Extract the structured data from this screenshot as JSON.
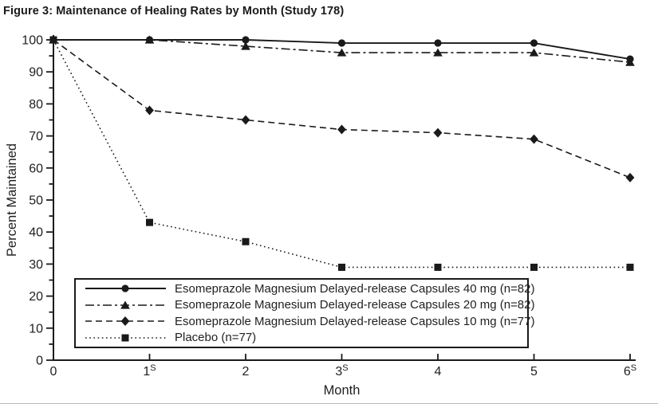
{
  "figure": {
    "title": "Figure 3: Maintenance of Healing Rates by Month (Study 178)"
  },
  "chart_data": {
    "type": "line",
    "title": "Figure 3: Maintenance of Healing Rates by Month (Study 178)",
    "xlabel": "Month",
    "ylabel": "Percent Maintained",
    "x": [
      0,
      1,
      2,
      3,
      4,
      5,
      6
    ],
    "x_tick_labels": [
      "0",
      "1",
      "2",
      "3",
      "4",
      "5",
      "6"
    ],
    "x_tick_superscript": "S",
    "x_tick_superscript_on": [
      1,
      3,
      6
    ],
    "ylim": [
      0,
      100
    ],
    "y_tick_step": 10,
    "y_minor_tick_step": 5,
    "grid": false,
    "legend_position": "inside-lower-left",
    "line_color": "#1a1a1a",
    "background_color": "#ffffff",
    "series": [
      {
        "id": "esomeprazole-40mg",
        "name": "Esomeprazole Magnesium Delayed-release Capsules 40 mg (n=82)",
        "marker": "circle",
        "line_style": "solid",
        "values": [
          100,
          100,
          100,
          99,
          99,
          99,
          94
        ]
      },
      {
        "id": "esomeprazole-20mg",
        "name": "Esomeprazole Magnesium Delayed-release Capsules 20 mg (n=82)",
        "marker": "triangle",
        "line_style": "dashdot",
        "values": [
          100,
          100,
          98,
          96,
          96,
          96,
          93
        ]
      },
      {
        "id": "esomeprazole-10mg",
        "name": "Esomeprazole Magnesium Delayed-release Capsules 10 mg (n=77)",
        "marker": "diamond",
        "line_style": "dashed",
        "values": [
          100,
          78,
          75,
          72,
          71,
          69,
          57
        ]
      },
      {
        "id": "placebo",
        "name": "Placebo (n=77)",
        "marker": "square",
        "line_style": "dotted",
        "values": [
          100,
          43,
          37,
          29,
          29,
          29,
          29
        ]
      }
    ]
  }
}
